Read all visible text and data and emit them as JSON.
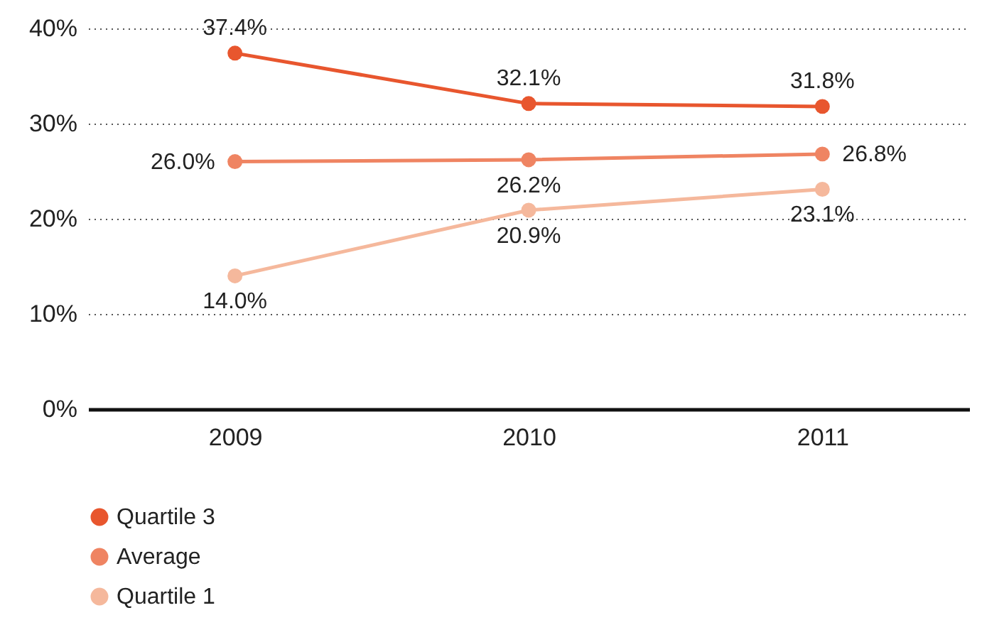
{
  "chart_data": {
    "type": "line",
    "categories": [
      "2009",
      "2010",
      "2011"
    ],
    "series": [
      {
        "name": "Quartile 3",
        "color": "#e8562e",
        "values": [
          37.4,
          32.1,
          31.8
        ],
        "value_labels": [
          "37.4%",
          "32.1%",
          "31.8%"
        ]
      },
      {
        "name": "Average",
        "color": "#ef8462",
        "values": [
          26.0,
          26.2,
          26.8
        ],
        "value_labels": [
          "26.0%",
          "26.2%",
          "26.8%"
        ]
      },
      {
        "name": "Quartile 1",
        "color": "#f5b89c",
        "values": [
          14.0,
          20.9,
          23.1
        ],
        "value_labels": [
          "14.0%",
          "20.9%",
          "23.1%"
        ]
      }
    ],
    "ylim": [
      0,
      40
    ],
    "yticks": [
      {
        "value": 0,
        "label": "0%"
      },
      {
        "value": 10,
        "label": "10%"
      },
      {
        "value": 20,
        "label": "20%"
      },
      {
        "value": 30,
        "label": "30%"
      },
      {
        "value": 40,
        "label": "40%"
      }
    ],
    "grid": "y",
    "legend": "bottom left",
    "marker": "circle",
    "line_style": "solid"
  }
}
